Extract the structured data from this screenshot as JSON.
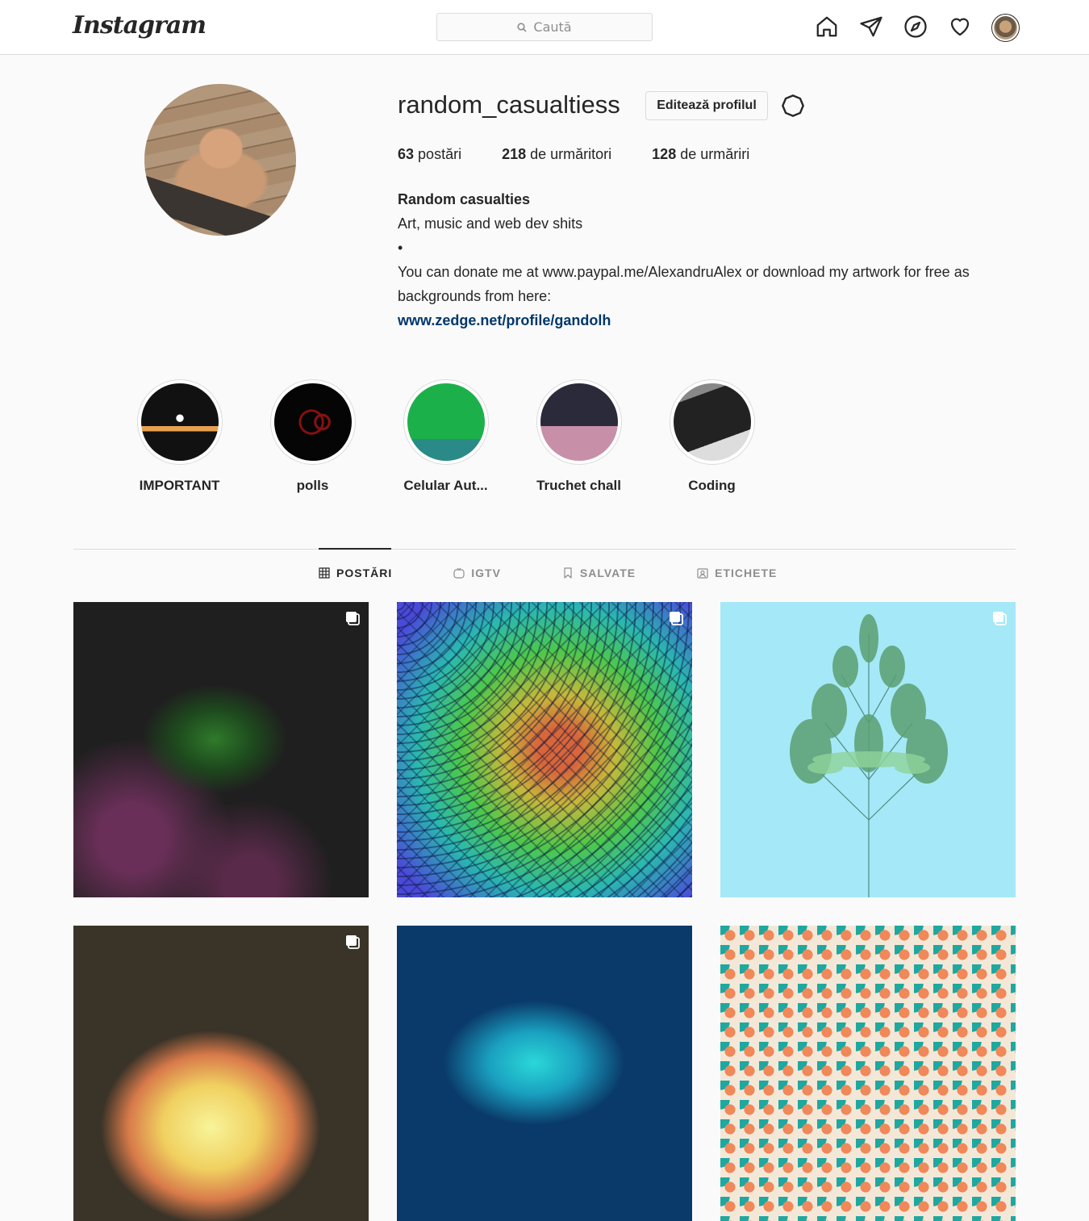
{
  "header": {
    "logo_text": "Instagram",
    "search_placeholder": "Caută"
  },
  "profile": {
    "username": "random_casualtiess",
    "edit_button": "Editează profilul",
    "stats": [
      {
        "count": "63",
        "label": "postări"
      },
      {
        "count": "218",
        "label": "de urmăritori"
      },
      {
        "count": "128",
        "label": "de urmăriri"
      }
    ],
    "bio": {
      "name": "Random casualties",
      "line1": "Art, music and web dev shits",
      "line2": "•",
      "line3": "You can donate me at www.paypal.me/AlexandruAlex or download my artwork for free as backgrounds from here:",
      "link": "www.zedge.net/profile/gandolh"
    }
  },
  "highlights": [
    {
      "label": "IMPORTANT"
    },
    {
      "label": "polls"
    },
    {
      "label": "Celular Aut..."
    },
    {
      "label": "Truchet chall"
    },
    {
      "label": "Coding"
    }
  ],
  "tabs": [
    {
      "label": "POSTĂRI"
    },
    {
      "label": "IGTV"
    },
    {
      "label": "SALVATE"
    },
    {
      "label": "ETICHETE"
    }
  ],
  "colors": {
    "link": "#00376b",
    "border": "#dbdbdb",
    "muted": "#8e8e8e"
  }
}
